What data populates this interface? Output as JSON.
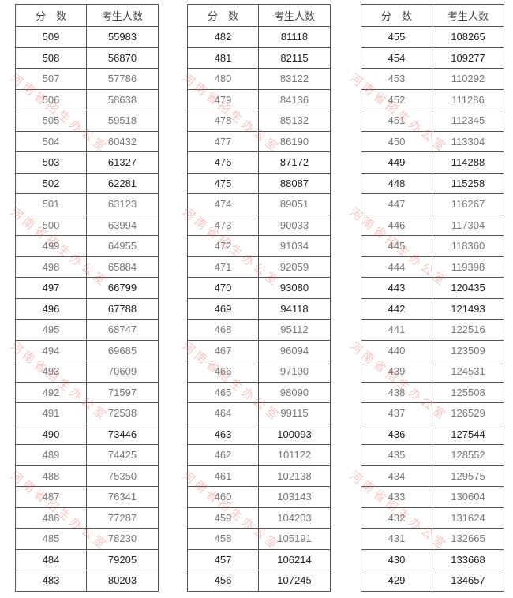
{
  "header": {
    "score": "分　数",
    "count": "考生人数"
  },
  "watermark": "河南省招生办公室",
  "tables": [
    {
      "rows": [
        [
          "509",
          "55983"
        ],
        [
          "508",
          "56870"
        ],
        [
          "507",
          "57786"
        ],
        [
          "506",
          "58638"
        ],
        [
          "505",
          "59518"
        ],
        [
          "504",
          "60432"
        ],
        [
          "503",
          "61327"
        ],
        [
          "502",
          "62281"
        ],
        [
          "501",
          "63123"
        ],
        [
          "500",
          "63994"
        ],
        [
          "499",
          "64955"
        ],
        [
          "498",
          "65884"
        ],
        [
          "497",
          "66799"
        ],
        [
          "496",
          "67788"
        ],
        [
          "495",
          "68747"
        ],
        [
          "494",
          "69685"
        ],
        [
          "493",
          "70609"
        ],
        [
          "492",
          "71597"
        ],
        [
          "491",
          "72538"
        ],
        [
          "490",
          "73446"
        ],
        [
          "489",
          "74425"
        ],
        [
          "488",
          "75350"
        ],
        [
          "487",
          "76341"
        ],
        [
          "486",
          "77287"
        ],
        [
          "485",
          "78230"
        ],
        [
          "484",
          "79205"
        ],
        [
          "483",
          "80203"
        ]
      ]
    },
    {
      "rows": [
        [
          "482",
          "81118"
        ],
        [
          "481",
          "82115"
        ],
        [
          "480",
          "83122"
        ],
        [
          "479",
          "84136"
        ],
        [
          "478",
          "85132"
        ],
        [
          "477",
          "86190"
        ],
        [
          "476",
          "87172"
        ],
        [
          "475",
          "88087"
        ],
        [
          "474",
          "89051"
        ],
        [
          "473",
          "90033"
        ],
        [
          "472",
          "91034"
        ],
        [
          "471",
          "92059"
        ],
        [
          "470",
          "93080"
        ],
        [
          "469",
          "94118"
        ],
        [
          "468",
          "95112"
        ],
        [
          "467",
          "96094"
        ],
        [
          "466",
          "97100"
        ],
        [
          "465",
          "98090"
        ],
        [
          "464",
          "99115"
        ],
        [
          "463",
          "100093"
        ],
        [
          "462",
          "101122"
        ],
        [
          "461",
          "102138"
        ],
        [
          "460",
          "103143"
        ],
        [
          "459",
          "104203"
        ],
        [
          "458",
          "105191"
        ],
        [
          "457",
          "106214"
        ],
        [
          "456",
          "107245"
        ]
      ]
    },
    {
      "rows": [
        [
          "455",
          "108265"
        ],
        [
          "454",
          "109277"
        ],
        [
          "453",
          "110292"
        ],
        [
          "452",
          "111286"
        ],
        [
          "451",
          "112345"
        ],
        [
          "450",
          "113304"
        ],
        [
          "449",
          "114288"
        ],
        [
          "448",
          "115258"
        ],
        [
          "447",
          "116267"
        ],
        [
          "446",
          "117304"
        ],
        [
          "445",
          "118360"
        ],
        [
          "444",
          "119398"
        ],
        [
          "443",
          "120435"
        ],
        [
          "442",
          "121493"
        ],
        [
          "441",
          "122516"
        ],
        [
          "440",
          "123509"
        ],
        [
          "439",
          "124531"
        ],
        [
          "438",
          "125508"
        ],
        [
          "437",
          "126529"
        ],
        [
          "436",
          "127544"
        ],
        [
          "435",
          "128552"
        ],
        [
          "434",
          "129575"
        ],
        [
          "433",
          "130604"
        ],
        [
          "432",
          "131624"
        ],
        [
          "431",
          "132665"
        ],
        [
          "430",
          "133668"
        ],
        [
          "429",
          "134657"
        ]
      ]
    }
  ]
}
